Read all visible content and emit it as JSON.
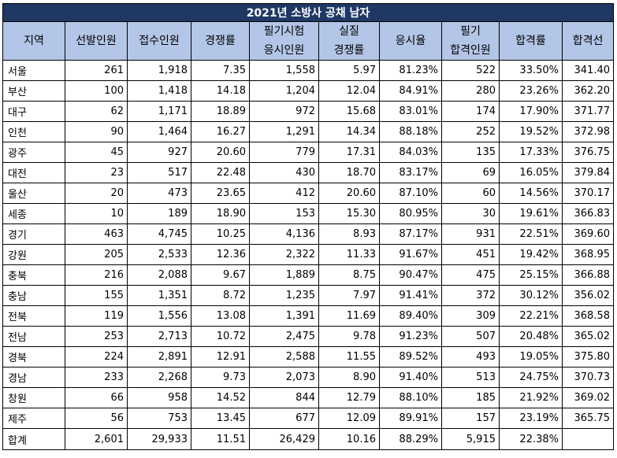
{
  "title": "2021년 소방사 공채 남자",
  "headers": [
    "지역",
    "선발인원",
    "접수인원",
    "경쟁률",
    "필기시험\n응시인원",
    "실질\n경쟁률",
    "응시율",
    "필기\n합격인원",
    "합격률",
    "합격선"
  ],
  "rows": [
    [
      "서울",
      "261",
      "1,918",
      "7.35",
      "1,558",
      "5.97",
      "81.23%",
      "522",
      "33.50%",
      "341.40"
    ],
    [
      "부산",
      "100",
      "1,418",
      "14.18",
      "1,204",
      "12.04",
      "84.91%",
      "280",
      "23.26%",
      "362.20"
    ],
    [
      "대구",
      "62",
      "1,171",
      "18.89",
      "972",
      "15.68",
      "83.01%",
      "174",
      "17.90%",
      "371.77"
    ],
    [
      "인천",
      "90",
      "1,464",
      "16.27",
      "1,291",
      "14.34",
      "88.18%",
      "252",
      "19.52%",
      "372.98"
    ],
    [
      "광주",
      "45",
      "927",
      "20.60",
      "779",
      "17.31",
      "84.03%",
      "135",
      "17.33%",
      "376.75"
    ],
    [
      "대전",
      "23",
      "517",
      "22.48",
      "430",
      "18.70",
      "83.17%",
      "69",
      "16.05%",
      "379.84"
    ],
    [
      "울산",
      "20",
      "473",
      "23.65",
      "412",
      "20.60",
      "87.10%",
      "60",
      "14.56%",
      "370.17"
    ],
    [
      "세종",
      "10",
      "189",
      "18.90",
      "153",
      "15.30",
      "80.95%",
      "30",
      "19.61%",
      "366.83"
    ],
    [
      "경기",
      "463",
      "4,745",
      "10.25",
      "4,136",
      "8.93",
      "87.17%",
      "931",
      "22.51%",
      "369.60"
    ],
    [
      "강원",
      "205",
      "2,533",
      "12.36",
      "2,322",
      "11.33",
      "91.67%",
      "451",
      "19.42%",
      "368.95"
    ],
    [
      "충북",
      "216",
      "2,088",
      "9.67",
      "1,889",
      "8.75",
      "90.47%",
      "475",
      "25.15%",
      "366.88"
    ],
    [
      "충남",
      "155",
      "1,351",
      "8.72",
      "1,235",
      "7.97",
      "91.41%",
      "372",
      "30.12%",
      "356.02"
    ],
    [
      "전북",
      "119",
      "1,556",
      "13.08",
      "1,391",
      "11.69",
      "89.40%",
      "309",
      "22.21%",
      "368.58"
    ],
    [
      "전남",
      "253",
      "2,713",
      "10.72",
      "2,475",
      "9.78",
      "91.23%",
      "507",
      "20.48%",
      "365.02"
    ],
    [
      "경북",
      "224",
      "2,891",
      "12.91",
      "2,588",
      "11.55",
      "89.52%",
      "493",
      "19.05%",
      "375.80"
    ],
    [
      "경남",
      "233",
      "2,268",
      "9.73",
      "2,073",
      "8.90",
      "91.40%",
      "513",
      "24.75%",
      "370.73"
    ],
    [
      "창원",
      "66",
      "958",
      "14.52",
      "844",
      "12.79",
      "88.10%",
      "185",
      "21.92%",
      "369.02"
    ],
    [
      "제주",
      "56",
      "753",
      "13.45",
      "677",
      "12.09",
      "89.91%",
      "157",
      "23.19%",
      "365.75"
    ]
  ],
  "total": [
    "합계",
    "2,601",
    "29,933",
    "11.51",
    "26,429",
    "10.16",
    "88.29%",
    "5,915",
    "22.38%",
    ""
  ]
}
